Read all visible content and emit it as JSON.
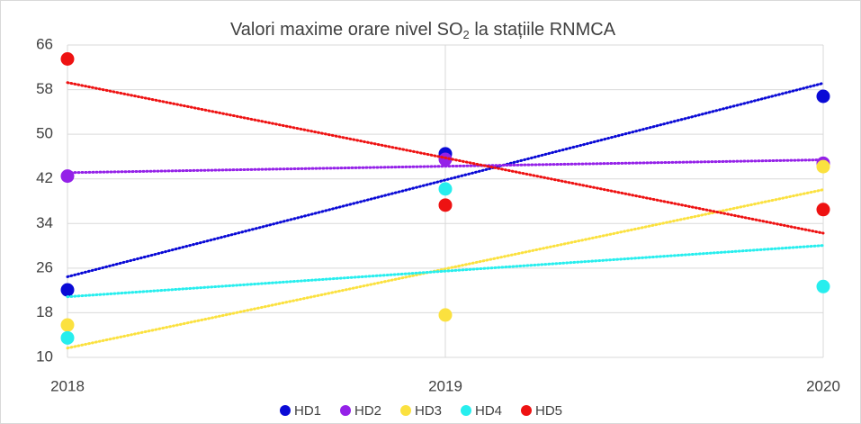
{
  "chart_data": {
    "type": "scatter",
    "title": [
      "Valori maxime orare nivel SO",
      "2",
      " la stațiile RNMCA"
    ],
    "x": [
      2018,
      2019,
      2020
    ],
    "xlim": [
      2018,
      2020
    ],
    "xticks": [
      2018,
      2019,
      2020
    ],
    "ylim": [
      10,
      66
    ],
    "yticks": [
      10,
      18,
      26,
      34,
      42,
      50,
      58,
      66
    ],
    "grid": true,
    "trendline": true,
    "legend": "bottom",
    "series": [
      {
        "name": "HD1",
        "color": "#0a0ad6",
        "values": [
          22.1,
          46.5,
          56.8
        ]
      },
      {
        "name": "HD2",
        "color": "#9421e8",
        "values": [
          42.5,
          45.5,
          44.8
        ]
      },
      {
        "name": "HD3",
        "color": "#fbe13f",
        "values": [
          15.8,
          17.6,
          44.2
        ]
      },
      {
        "name": "HD4",
        "color": "#27eeee",
        "values": [
          13.5,
          40.2,
          22.7
        ]
      },
      {
        "name": "HD5",
        "color": "#ee1212",
        "values": [
          63.5,
          37.3,
          36.5
        ]
      }
    ]
  }
}
